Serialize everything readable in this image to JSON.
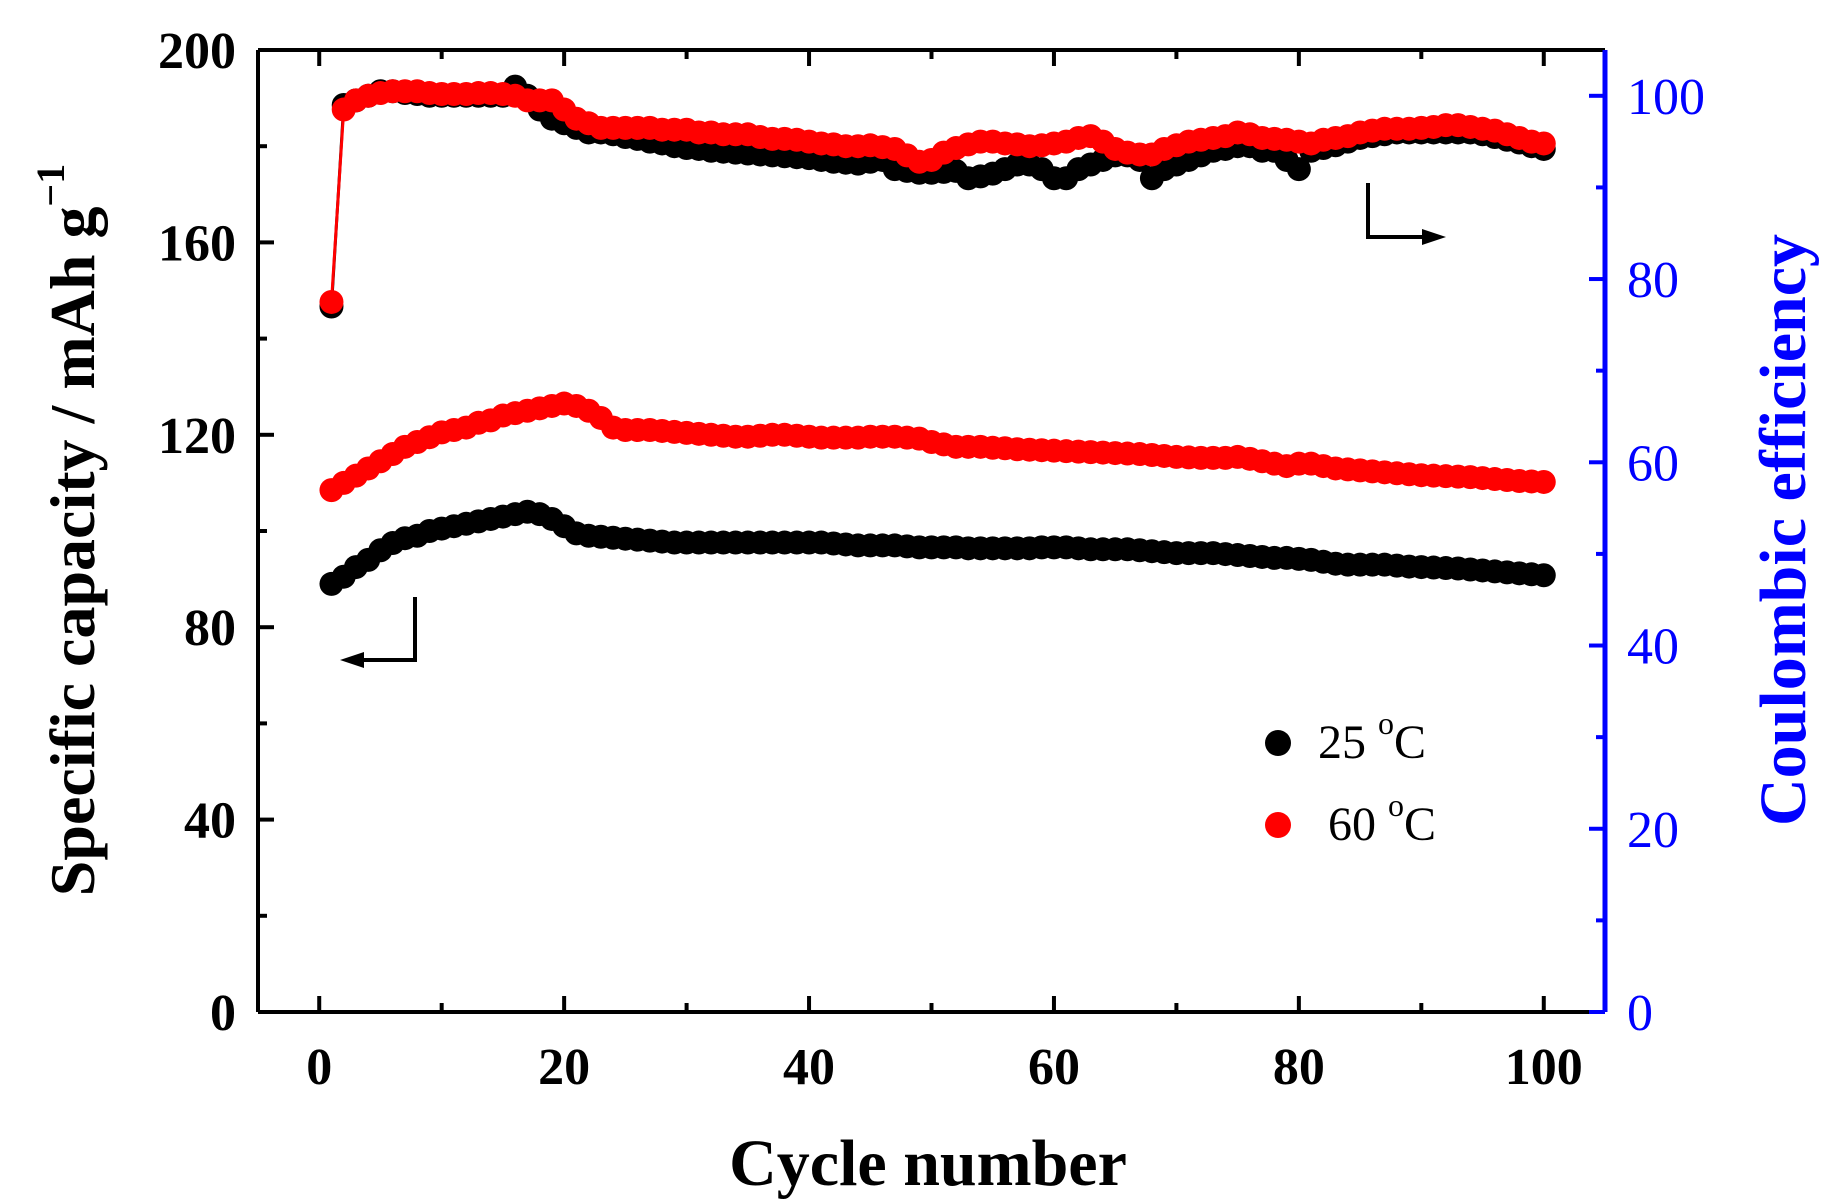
{
  "chart_data": {
    "type": "scatter",
    "xlabel": "Cycle number",
    "ylabel_left": "Specific capacity / mAh g",
    "ylabel_left_superscript": "−1",
    "ylabel_right": "Coulombic efficiency",
    "xlim": [
      -5,
      105
    ],
    "ylim_left": [
      0,
      200
    ],
    "ylim_right": [
      0,
      105
    ],
    "x_ticks": [
      0,
      20,
      40,
      60,
      80,
      100
    ],
    "y_left_ticks": [
      0,
      40,
      80,
      120,
      160,
      200
    ],
    "y_right_ticks": [
      0,
      20,
      40,
      60,
      80,
      100
    ],
    "colors": {
      "axes": "#000000",
      "right_axis": "#0000ff",
      "series_25": "#000000",
      "series_60": "#ff0000"
    },
    "legend": [
      {
        "label": "25 ",
        "sup": "o",
        "unit": "C",
        "color": "#000000"
      },
      {
        "label": "60 ",
        "sup": "o",
        "unit": "C",
        "color": "#ff0000"
      }
    ],
    "cycles": [
      1,
      2,
      3,
      4,
      5,
      6,
      7,
      8,
      9,
      10,
      11,
      12,
      13,
      14,
      15,
      16,
      17,
      18,
      19,
      20,
      21,
      22,
      23,
      24,
      25,
      26,
      27,
      28,
      29,
      30,
      31,
      32,
      33,
      34,
      35,
      36,
      37,
      38,
      39,
      40,
      41,
      42,
      43,
      44,
      45,
      46,
      47,
      48,
      49,
      50,
      51,
      52,
      53,
      54,
      55,
      56,
      57,
      58,
      59,
      60,
      61,
      62,
      63,
      64,
      65,
      66,
      67,
      68,
      69,
      70,
      71,
      72,
      73,
      74,
      75,
      76,
      77,
      78,
      79,
      80,
      81,
      82,
      83,
      84,
      85,
      86,
      87,
      88,
      89,
      90,
      91,
      92,
      93,
      94,
      95,
      96,
      97,
      98,
      99,
      100
    ],
    "series": [
      {
        "name": "25 °C capacity",
        "axis": "left",
        "color": "#000000",
        "values": [
          89.0,
          90.5,
          92.5,
          94.0,
          96.0,
          97.5,
          98.5,
          99.0,
          100.0,
          100.5,
          101.0,
          101.5,
          102.0,
          102.5,
          103.0,
          103.5,
          104.0,
          103.5,
          102.5,
          101.0,
          99.5,
          99.0,
          98.8,
          98.6,
          98.4,
          98.2,
          98.0,
          97.8,
          97.6,
          97.6,
          97.6,
          97.6,
          97.6,
          97.6,
          97.6,
          97.6,
          97.6,
          97.6,
          97.6,
          97.6,
          97.6,
          97.4,
          97.2,
          97.0,
          97.0,
          97.0,
          97.0,
          96.8,
          96.6,
          96.6,
          96.6,
          96.6,
          96.4,
          96.4,
          96.4,
          96.4,
          96.4,
          96.4,
          96.6,
          96.6,
          96.6,
          96.4,
          96.2,
          96.2,
          96.2,
          96.2,
          96.0,
          95.8,
          95.6,
          95.4,
          95.4,
          95.4,
          95.4,
          95.2,
          95.0,
          94.8,
          94.6,
          94.4,
          94.4,
          94.2,
          94.0,
          93.6,
          93.2,
          93.0,
          93.0,
          93.0,
          93.0,
          92.8,
          92.6,
          92.5,
          92.4,
          92.3,
          92.2,
          92.0,
          91.8,
          91.6,
          91.4,
          91.2,
          91.0,
          90.8
        ]
      },
      {
        "name": "60 °C capacity",
        "axis": "left",
        "color": "#ff0000",
        "values": [
          108.5,
          110.0,
          111.5,
          113.0,
          114.5,
          116.0,
          117.5,
          118.5,
          119.5,
          120.5,
          121.0,
          121.5,
          122.5,
          123.0,
          124.0,
          124.5,
          125.0,
          125.5,
          126.0,
          126.5,
          126.0,
          125.0,
          123.5,
          121.5,
          121.0,
          121.0,
          121.0,
          120.8,
          120.6,
          120.4,
          120.2,
          120.0,
          119.8,
          119.6,
          119.6,
          119.8,
          120.0,
          120.0,
          119.8,
          119.6,
          119.4,
          119.4,
          119.4,
          119.4,
          119.6,
          119.6,
          119.6,
          119.4,
          119.2,
          118.5,
          118.0,
          117.5,
          117.5,
          117.5,
          117.3,
          117.2,
          117.0,
          116.9,
          116.8,
          116.7,
          116.6,
          116.5,
          116.4,
          116.3,
          116.2,
          116.1,
          116.0,
          115.8,
          115.6,
          115.4,
          115.3,
          115.2,
          115.2,
          115.2,
          115.4,
          115.0,
          114.5,
          114.0,
          113.5,
          114.0,
          114.0,
          113.5,
          113.0,
          112.8,
          112.6,
          112.4,
          112.2,
          112.0,
          111.8,
          111.6,
          111.5,
          111.4,
          111.3,
          111.2,
          111.0,
          110.8,
          110.6,
          110.4,
          110.3,
          110.2
        ]
      },
      {
        "name": "25 °C efficiency",
        "axis": "right",
        "color": "#000000",
        "values": [
          77.0,
          99.0,
          99.5,
          100.0,
          100.5,
          100.5,
          100.3,
          100.2,
          100.0,
          100.0,
          100.0,
          100.0,
          100.0,
          100.0,
          100.0,
          101.0,
          100.0,
          98.5,
          97.5,
          97.0,
          96.5,
          96.0,
          96.0,
          95.8,
          95.5,
          95.3,
          95.0,
          94.8,
          94.5,
          94.3,
          94.2,
          94.0,
          93.9,
          93.8,
          93.7,
          93.6,
          93.5,
          93.4,
          93.3,
          93.2,
          93.0,
          92.8,
          92.7,
          92.6,
          92.8,
          93.0,
          92.0,
          91.8,
          91.6,
          91.6,
          91.7,
          91.8,
          91.0,
          91.2,
          91.5,
          92.0,
          92.5,
          92.5,
          92.0,
          91.0,
          91.0,
          92.0,
          92.5,
          93.0,
          93.5,
          93.5,
          93.0,
          91.0,
          92.0,
          92.5,
          93.0,
          93.5,
          94.0,
          94.2,
          94.5,
          94.5,
          94.0,
          94.0,
          93.0,
          92.0,
          94.0,
          94.3,
          94.6,
          95.0,
          95.4,
          95.6,
          95.8,
          96.0,
          96.0,
          96.0,
          96.0,
          96.0,
          96.0,
          96.0,
          95.8,
          95.5,
          95.2,
          94.9,
          94.5,
          94.2
        ]
      },
      {
        "name": "60 °C efficiency",
        "axis": "right",
        "color": "#ff0000",
        "values": [
          77.5,
          98.5,
          99.5,
          100.0,
          100.3,
          100.5,
          100.5,
          100.5,
          100.3,
          100.2,
          100.2,
          100.2,
          100.3,
          100.3,
          100.2,
          100.0,
          99.5,
          99.5,
          99.5,
          98.5,
          97.5,
          97.0,
          96.5,
          96.5,
          96.5,
          96.5,
          96.5,
          96.3,
          96.3,
          96.3,
          96.0,
          96.0,
          95.8,
          95.8,
          95.8,
          95.5,
          95.3,
          95.3,
          95.2,
          95.0,
          94.8,
          94.7,
          94.5,
          94.5,
          94.6,
          94.4,
          94.2,
          93.5,
          92.8,
          93.0,
          93.8,
          94.3,
          94.7,
          95.0,
          95.0,
          94.8,
          94.7,
          94.5,
          94.6,
          94.8,
          95.0,
          95.4,
          95.6,
          95.0,
          94.2,
          93.8,
          93.6,
          93.6,
          94.2,
          94.6,
          95.0,
          95.2,
          95.4,
          95.6,
          96.0,
          95.8,
          95.4,
          95.3,
          95.2,
          95.0,
          94.8,
          95.2,
          95.4,
          95.6,
          96.0,
          96.2,
          96.4,
          96.4,
          96.4,
          96.5,
          96.6,
          96.8,
          96.8,
          96.6,
          96.4,
          96.2,
          95.8,
          95.4,
          95.0,
          94.8
        ]
      }
    ]
  }
}
